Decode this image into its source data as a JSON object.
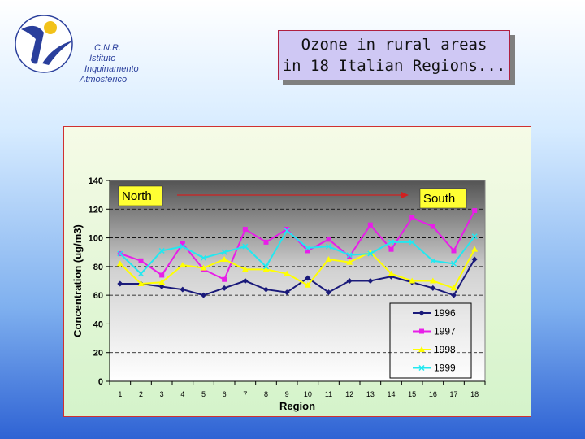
{
  "logo": {
    "lines": [
      "C.N.R.",
      "Istituto",
      "Inquinamento",
      "Atmosferico"
    ]
  },
  "title": {
    "line1": "Ozone in rural areas",
    "line2": "in 18 Italian Regions..."
  },
  "colors": {
    "1996": "#1a1a7a",
    "1997": "#e81ee8",
    "1998": "#ffff00",
    "1999": "#22e8f0"
  },
  "chart_data": {
    "type": "line",
    "ylabel": "Concentration (ug/m3)",
    "xlabel": "Region",
    "ylim": [
      0,
      140
    ],
    "yticks": [
      0,
      20,
      40,
      60,
      80,
      100,
      120,
      140
    ],
    "grid": true,
    "legend_position": "bottom-right",
    "categories": [
      "1",
      "2",
      "3",
      "4",
      "5",
      "6",
      "7",
      "8",
      "9",
      "10",
      "11",
      "12",
      "13",
      "14",
      "15",
      "16",
      "17",
      "18"
    ],
    "annotations": {
      "left": "North",
      "right": "South"
    },
    "series": [
      {
        "name": "1996",
        "marker": "diamond",
        "values": [
          68,
          68,
          66,
          64,
          60,
          65,
          70,
          64,
          62,
          72,
          62,
          70,
          70,
          73,
          69,
          65,
          60,
          85
        ]
      },
      {
        "name": "1997",
        "marker": "square",
        "values": [
          89,
          84,
          74,
          96,
          78,
          71,
          106,
          97,
          106,
          91,
          99,
          87,
          109,
          92,
          114,
          108,
          91,
          119
        ]
      },
      {
        "name": "1998",
        "marker": "triangle",
        "values": [
          82,
          68,
          69,
          81,
          79,
          85,
          78,
          78,
          75,
          67,
          85,
          83,
          90,
          75,
          70,
          70,
          65,
          92
        ]
      },
      {
        "name": "1999",
        "marker": "x",
        "values": [
          89,
          75,
          91,
          94,
          86,
          90,
          94,
          80,
          105,
          93,
          94,
          88,
          89,
          97,
          97,
          84,
          82,
          101
        ]
      }
    ]
  }
}
